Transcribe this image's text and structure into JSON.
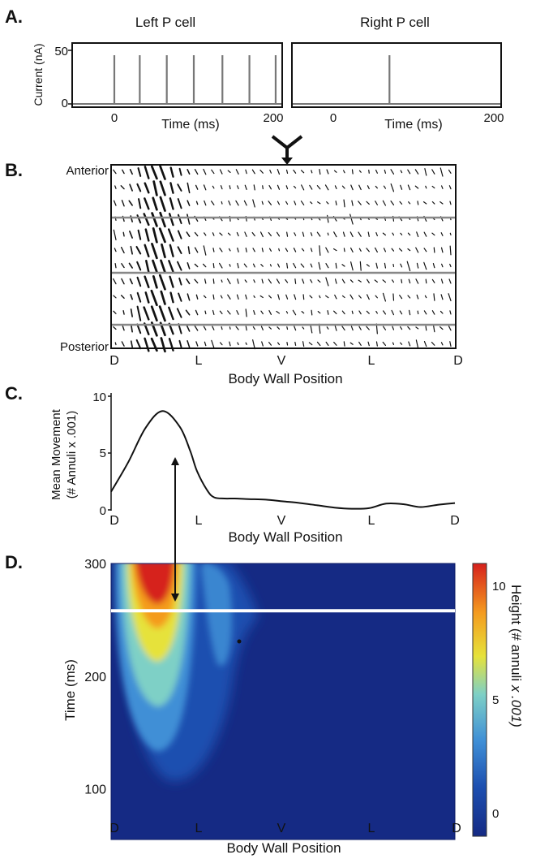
{
  "panels": {
    "a": "A.",
    "b": "B.",
    "c": "C.",
    "d": "D."
  },
  "chart_data": [
    {
      "type": "line",
      "panel": "A",
      "title": "Left P cell",
      "xlabel": "Time (ms)",
      "ylabel": "Current (nA)",
      "xlim": [
        -50,
        200
      ],
      "ylim": [
        -3,
        55
      ],
      "xticks": [
        "0",
        "200"
      ],
      "yticks": [
        "50",
        "0"
      ],
      "spikes_ms": [
        0,
        32,
        66,
        100,
        136,
        170,
        203
      ],
      "spike_height": 50
    },
    {
      "type": "line",
      "panel": "A",
      "title": "Right P cell",
      "xlabel": "Time (ms)",
      "xlim": [
        -50,
        200
      ],
      "ylim": [
        -3,
        55
      ],
      "xticks": [
        "0",
        "200"
      ],
      "spikes_ms": [
        70
      ],
      "spike_height": 50
    },
    {
      "type": "scatter",
      "panel": "B",
      "title": "",
      "xlabel": "Body Wall Position",
      "xticks": [
        "D",
        "L",
        "V",
        "L",
        "D"
      ],
      "yticks": [
        "Anterior",
        "Posterior"
      ],
      "rows": 12,
      "cols": 42,
      "segment_dividers_after_rows": [
        3,
        6,
        9
      ]
    },
    {
      "type": "line",
      "panel": "C",
      "xlabel": "Body Wall Position",
      "ylabel_line1": "Mean Movement",
      "ylabel_line2": "(# Annuli x .001)",
      "xticks": [
        "D",
        "L",
        "V",
        "L",
        "D"
      ],
      "yticks": [
        "10",
        "5",
        "0"
      ],
      "ylim": [
        0,
        10
      ],
      "x": [
        0,
        0.05,
        0.1,
        0.15,
        0.2,
        0.23,
        0.25,
        0.28,
        0.3,
        0.33,
        0.36,
        0.4,
        0.45,
        0.5,
        0.55,
        0.6,
        0.65,
        0.7,
        0.75,
        0.8,
        0.85,
        0.9,
        0.95,
        1.0
      ],
      "values": [
        1.6,
        4.2,
        7.2,
        8.7,
        7.3,
        5.2,
        3.4,
        1.7,
        1.1,
        1.0,
        1.0,
        0.95,
        0.9,
        0.75,
        0.6,
        0.4,
        0.2,
        0.1,
        0.15,
        0.55,
        0.5,
        0.25,
        0.45,
        0.6
      ]
    },
    {
      "type": "heatmap",
      "panel": "D",
      "xlabel": "Body Wall Position",
      "ylabel": "Time (ms)",
      "xticks": [
        "D",
        "L",
        "V",
        "L",
        "D"
      ],
      "yticks": [
        "300",
        "200",
        "100"
      ],
      "ylim": [
        55,
        300
      ],
      "marker_time_ms": 258,
      "colorbar_label_a": "Height (# annuli ",
      "colorbar_label_b": "x .001)",
      "colorbar_ticks": [
        "10",
        "5",
        "0"
      ],
      "colorbar_range": [
        -1,
        11
      ],
      "colors": [
        "#152a84",
        "#1d4fb0",
        "#3f8fd6",
        "#7ed0c6",
        "#e6e23a",
        "#f49b1f",
        "#d6201c"
      ]
    }
  ]
}
